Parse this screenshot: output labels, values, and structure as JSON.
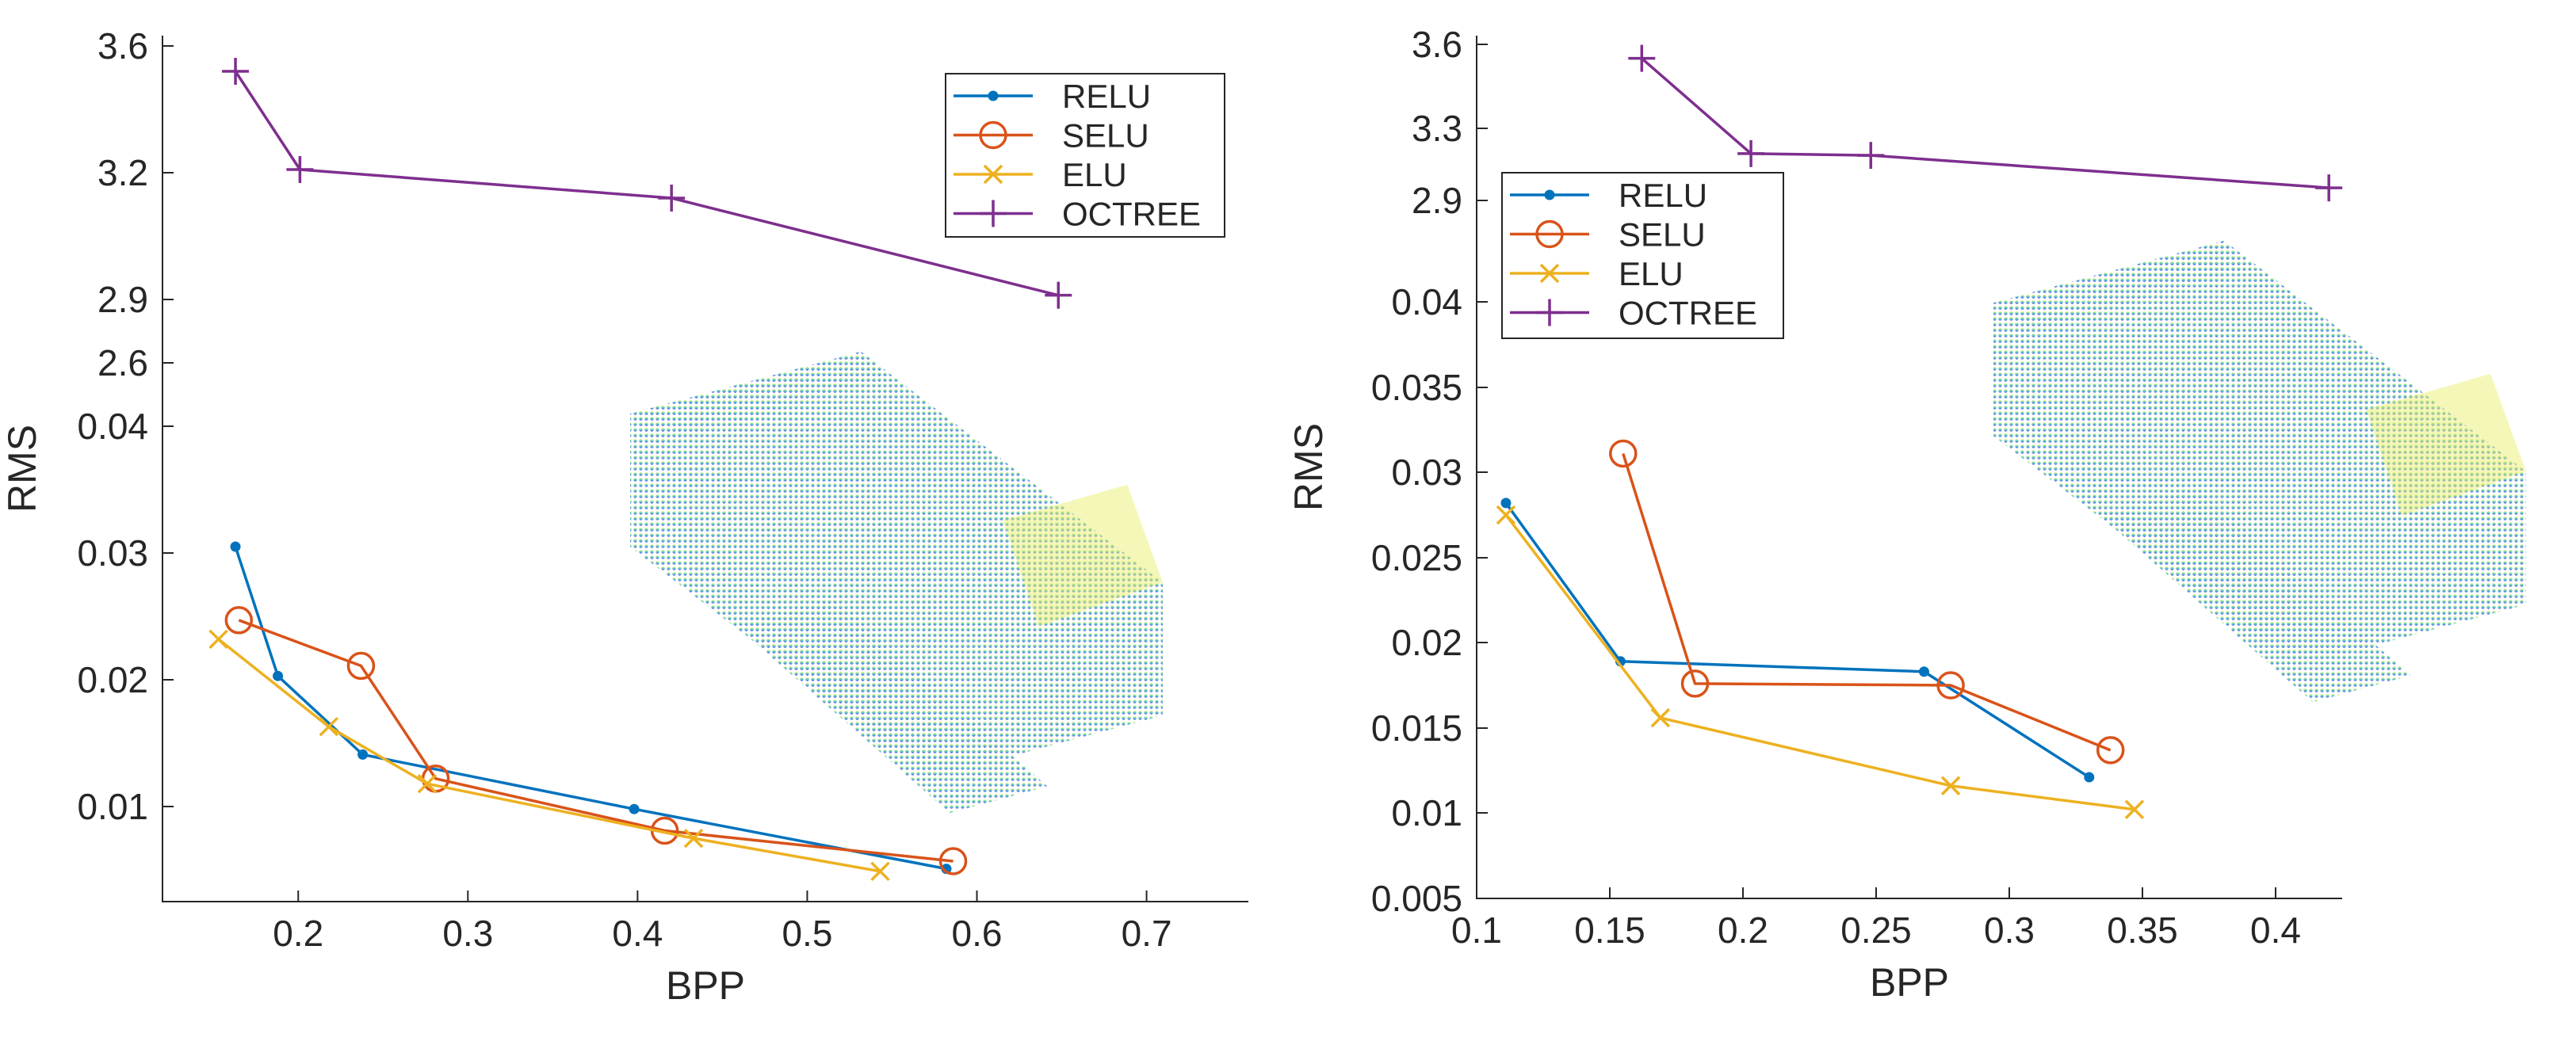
{
  "chart_data": [
    {
      "type": "line",
      "panel": "left",
      "xlabel": "BPP",
      "ylabel": "RMS",
      "xlim": [
        0.12,
        0.76
      ],
      "x_ticks": [
        0.2,
        0.3,
        0.4,
        0.5,
        0.6,
        0.7
      ],
      "x_tick_labels": [
        "0.2",
        "0.3",
        "0.4",
        "0.5",
        "0.6",
        "0.7"
      ],
      "y_axis": "broken",
      "y_ticks": [
        {
          "label": "0.01",
          "value": 0.01,
          "segment": "lower"
        },
        {
          "label": "0.02",
          "value": 0.02,
          "segment": "lower"
        },
        {
          "label": "0.03",
          "value": 0.03,
          "segment": "lower"
        },
        {
          "label": "0.04",
          "value": 0.04,
          "segment": "lower"
        },
        {
          "label": "2.6",
          "value": 2.6,
          "segment": "upper"
        },
        {
          "label": "2.9",
          "value": 2.9,
          "segment": "upper"
        },
        {
          "label": "3.2",
          "value": 3.2,
          "segment": "upper"
        },
        {
          "label": "3.6",
          "value": 3.6,
          "segment": "upper"
        }
      ],
      "legend_position": "top-right",
      "series": [
        {
          "name": "RELU",
          "color": "#0072BD",
          "marker": "dot",
          "segment": "lower",
          "x": [
            0.163,
            0.188,
            0.238,
            0.398,
            0.582
          ],
          "y": [
            0.0305,
            0.0203,
            0.0141,
            0.0098,
            0.0051
          ]
        },
        {
          "name": "SELU",
          "color": "#D95319",
          "marker": "circle",
          "segment": "lower",
          "x": [
            0.165,
            0.237,
            0.281,
            0.416,
            0.586
          ],
          "y": [
            0.0247,
            0.0211,
            0.0122,
            0.0081,
            0.0057
          ]
        },
        {
          "name": "ELU",
          "color": "#EDB120",
          "marker": "x",
          "segment": "lower",
          "x": [
            0.153,
            0.218,
            0.276,
            0.433,
            0.543
          ],
          "y": [
            0.0232,
            0.0163,
            0.0118,
            0.0075,
            0.0049
          ]
        },
        {
          "name": "OCTREE",
          "color": "#7E2F8E",
          "marker": "plus",
          "segment": "upper",
          "x": [
            0.163,
            0.201,
            0.42,
            0.648
          ],
          "y": [
            3.52,
            3.21,
            3.14,
            2.91
          ]
        }
      ]
    },
    {
      "type": "line",
      "panel": "right",
      "xlabel": "BPP",
      "ylabel": "RMS",
      "xlim": [
        0.1,
        0.425
      ],
      "x_ticks": [
        0.1,
        0.15,
        0.2,
        0.25,
        0.3,
        0.35,
        0.4
      ],
      "x_tick_labels": [
        "0.1",
        "0.15",
        "0.2",
        "0.25",
        "0.3",
        "0.35",
        "0.4"
      ],
      "y_axis": "broken",
      "y_ticks": [
        {
          "label": "0.005",
          "value": 0.005,
          "segment": "lower"
        },
        {
          "label": "0.01",
          "value": 0.01,
          "segment": "lower"
        },
        {
          "label": "0.015",
          "value": 0.015,
          "segment": "lower"
        },
        {
          "label": "0.02",
          "value": 0.02,
          "segment": "lower"
        },
        {
          "label": "0.025",
          "value": 0.025,
          "segment": "lower"
        },
        {
          "label": "0.03",
          "value": 0.03,
          "segment": "lower"
        },
        {
          "label": "0.035",
          "value": 0.035,
          "segment": "lower"
        },
        {
          "label": "0.04",
          "value": 0.04,
          "segment": "lower"
        },
        {
          "label": "2.9",
          "value": 2.9,
          "segment": "upper"
        },
        {
          "label": "3.3",
          "value": 3.3,
          "segment": "upper"
        },
        {
          "label": "3.6",
          "value": 3.6,
          "segment": "upper"
        }
      ],
      "legend_position": "top-left",
      "series": [
        {
          "name": "RELU",
          "color": "#0072BD",
          "marker": "dot",
          "segment": "lower",
          "x": [
            0.111,
            0.154,
            0.268,
            0.33
          ],
          "y": [
            0.0282,
            0.0189,
            0.0183,
            0.0121
          ]
        },
        {
          "name": "SELU",
          "color": "#D95319",
          "marker": "circle",
          "segment": "lower",
          "x": [
            0.155,
            0.182,
            0.278,
            0.338
          ],
          "y": [
            0.0311,
            0.0176,
            0.0175,
            0.0137
          ]
        },
        {
          "name": "ELU",
          "color": "#EDB120",
          "marker": "x",
          "segment": "lower",
          "x": [
            0.111,
            0.169,
            0.278,
            0.347
          ],
          "y": [
            0.0275,
            0.0156,
            0.0116,
            0.0102
          ]
        },
        {
          "name": "OCTREE",
          "color": "#7E2F8E",
          "marker": "plus",
          "segment": "upper",
          "x": [
            0.162,
            0.203,
            0.248,
            0.42
          ],
          "y": [
            3.55,
            3.16,
            3.15,
            2.97
          ]
        }
      ]
    }
  ]
}
